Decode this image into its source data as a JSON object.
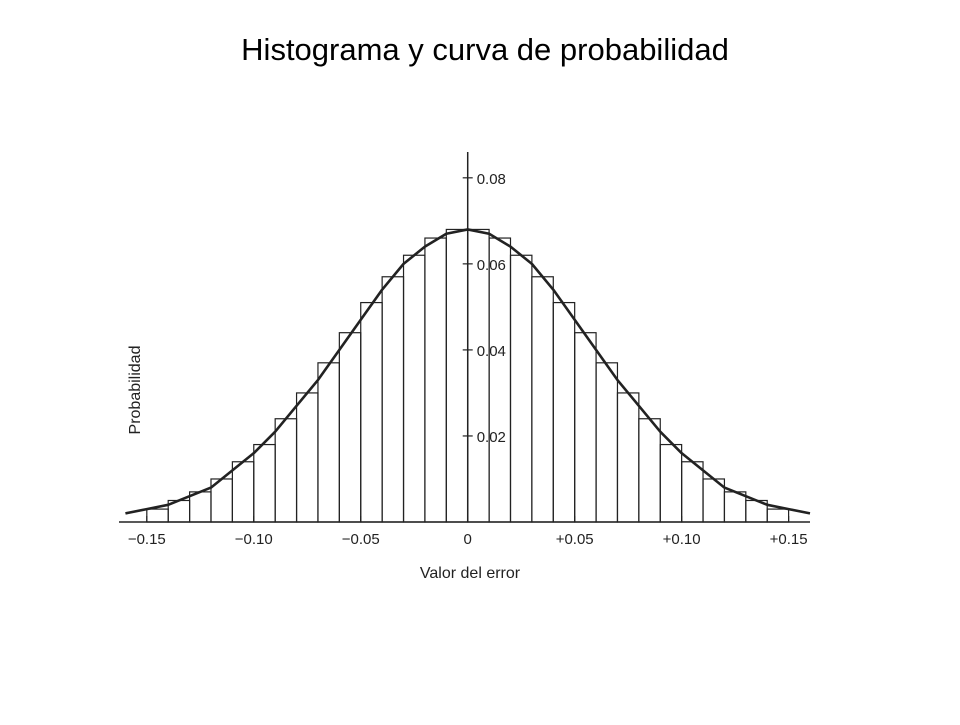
{
  "chart_data": {
    "type": "histogram",
    "title": "Histograma y curva de probabilidad",
    "x_label": "Valor del error",
    "y_label": "Probabilidad",
    "bins": [
      -0.15,
      -0.14,
      -0.13,
      -0.12,
      -0.11,
      -0.1,
      -0.09,
      -0.08,
      -0.07,
      -0.06,
      -0.05,
      -0.04,
      -0.03,
      -0.02,
      -0.01,
      0,
      0.01,
      0.02,
      0.03,
      0.04,
      0.05,
      0.06,
      0.07,
      0.08,
      0.09,
      0.1,
      0.11,
      0.12,
      0.13,
      0.14,
      0.15
    ],
    "values": [
      0.003,
      0.005,
      0.007,
      0.01,
      0.014,
      0.018,
      0.024,
      0.03,
      0.037,
      0.044,
      0.051,
      0.057,
      0.062,
      0.066,
      0.068,
      0.068,
      0.066,
      0.062,
      0.057,
      0.051,
      0.044,
      0.037,
      0.03,
      0.024,
      0.018,
      0.014,
      0.01,
      0.007,
      0.005,
      0.003
    ],
    "curve": {
      "x": [
        -0.16,
        -0.15,
        -0.14,
        -0.13,
        -0.12,
        -0.11,
        -0.1,
        -0.09,
        -0.08,
        -0.07,
        -0.06,
        -0.05,
        -0.04,
        -0.03,
        -0.02,
        -0.01,
        0,
        0.01,
        0.02,
        0.03,
        0.04,
        0.05,
        0.06,
        0.07,
        0.08,
        0.09,
        0.1,
        0.11,
        0.12,
        0.13,
        0.14,
        0.15,
        0.16
      ],
      "values": [
        0.002,
        0.003,
        0.004,
        0.006,
        0.008,
        0.012,
        0.016,
        0.021,
        0.027,
        0.033,
        0.04,
        0.047,
        0.054,
        0.06,
        0.064,
        0.067,
        0.068,
        0.067,
        0.064,
        0.06,
        0.054,
        0.047,
        0.04,
        0.033,
        0.027,
        0.021,
        0.016,
        0.012,
        0.008,
        0.006,
        0.004,
        0.003,
        0.002
      ]
    },
    "xlim": [
      -0.163,
      0.16
    ],
    "ylim": [
      0,
      0.086
    ],
    "xticks": [
      {
        "value": -0.15,
        "label": "−0.15"
      },
      {
        "value": -0.1,
        "label": "−0.10"
      },
      {
        "value": -0.05,
        "label": "−0.05"
      },
      0,
      {
        "value": 0.05,
        "label": "+0.05"
      },
      {
        "value": 0.1,
        "label": "+0.10"
      },
      {
        "value": 0.15,
        "label": "+0.15"
      }
    ],
    "yticks": [
      0.02,
      0.04,
      0.06,
      0.08
    ],
    "color": "#222222"
  }
}
